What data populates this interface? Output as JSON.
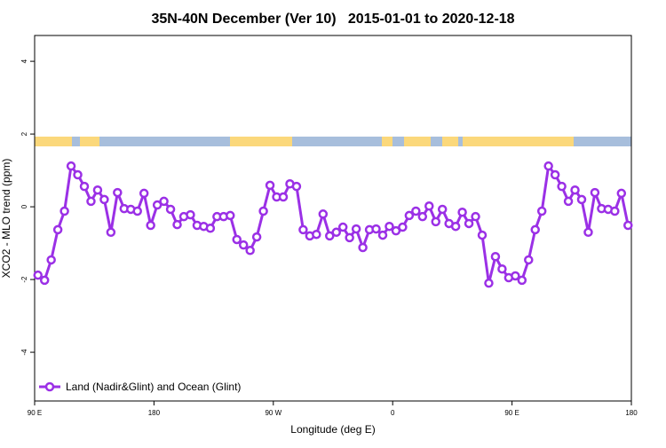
{
  "chart_data": {
    "type": "line",
    "title": "35N-40N December (Ver 10)   2015-01-01 to 2020-12-18",
    "xlabel": "Longitude (deg E)",
    "ylabel": "XCO2 - MLO trend (ppm)",
    "x": [
      92.5,
      97.5,
      102.5,
      107.5,
      112.5,
      117.5,
      122.5,
      127.5,
      132.5,
      137.5,
      142.5,
      147.5,
      152.5,
      157.5,
      162.5,
      167.5,
      172.5,
      177.5,
      182.5,
      187.5,
      192.5,
      197.5,
      202.5,
      207.5,
      212.5,
      217.5,
      222.5,
      227.5,
      232.5,
      237.5,
      242.5,
      247.5,
      252.5,
      257.5,
      262.5,
      267.5,
      272.5,
      277.5,
      282.5,
      287.5,
      292.5,
      297.5,
      302.5,
      307.5,
      312.5,
      317.5,
      322.5,
      327.5,
      332.5,
      337.5,
      342.5,
      347.5,
      352.5,
      357.5,
      362.5,
      367.5,
      372.5,
      377.5,
      382.5,
      387.5,
      392.5,
      397.5,
      402.5,
      407.5,
      412.5,
      417.5,
      422.5,
      427.5,
      432.5,
      437.5,
      442.5,
      447.5,
      452.5,
      457.5,
      462.5,
      467.5,
      472.5,
      477.5,
      482.5,
      487.5,
      492.5,
      497.5,
      502.5,
      507.5,
      512.5,
      517.5,
      522.5,
      527.5,
      532.5,
      537.5
    ],
    "series": [
      {
        "name": "Land (Nadir&Glint) and Ocean (Glint)",
        "color": "#9b30e6",
        "values": [
          -1.88,
          -2.02,
          -1.46,
          -0.63,
          -0.12,
          1.12,
          0.88,
          0.56,
          0.15,
          0.46,
          0.2,
          -0.7,
          0.39,
          -0.05,
          -0.07,
          -0.12,
          0.37,
          -0.51,
          0.05,
          0.15,
          -0.07,
          -0.49,
          -0.27,
          -0.22,
          -0.51,
          -0.54,
          -0.59,
          -0.27,
          -0.27,
          -0.24,
          -0.9,
          -1.05,
          -1.2,
          -0.83,
          -0.12,
          0.59,
          0.27,
          0.27,
          0.63,
          0.56,
          -0.63,
          -0.8,
          -0.76,
          -0.2,
          -0.8,
          -0.7,
          -0.56,
          -0.85,
          -0.61,
          -1.12,
          -0.63,
          -0.61,
          -0.78,
          -0.54,
          -0.66,
          -0.56,
          -0.24,
          -0.12,
          -0.27,
          0.02,
          -0.41,
          -0.07,
          -0.46,
          -0.54,
          -0.15,
          -0.46,
          -0.27,
          -0.78,
          -2.1,
          -1.37,
          -1.71,
          -1.95,
          -1.9,
          -2.02,
          -1.46,
          -0.63,
          -0.12,
          1.12,
          0.88,
          0.56,
          0.15,
          0.46,
          0.2,
          -0.7,
          0.39,
          -0.05,
          -0.07,
          -0.12,
          0.37,
          -0.51
        ]
      }
    ],
    "xlim": [
      90,
      540
    ],
    "xticks": [
      {
        "value": 90,
        "label": "90 E"
      },
      180,
      {
        "value": 270,
        "label": "90 W"
      },
      {
        "value": 360,
        "label": "0"
      },
      {
        "value": 450,
        "label": "90 E"
      },
      {
        "value": 540,
        "label": "180"
      }
    ],
    "ylim": [
      -5.34,
      4.71
    ],
    "yticks": [
      -4,
      -2,
      0,
      2,
      4
    ],
    "legend": "bottom-left"
  }
}
